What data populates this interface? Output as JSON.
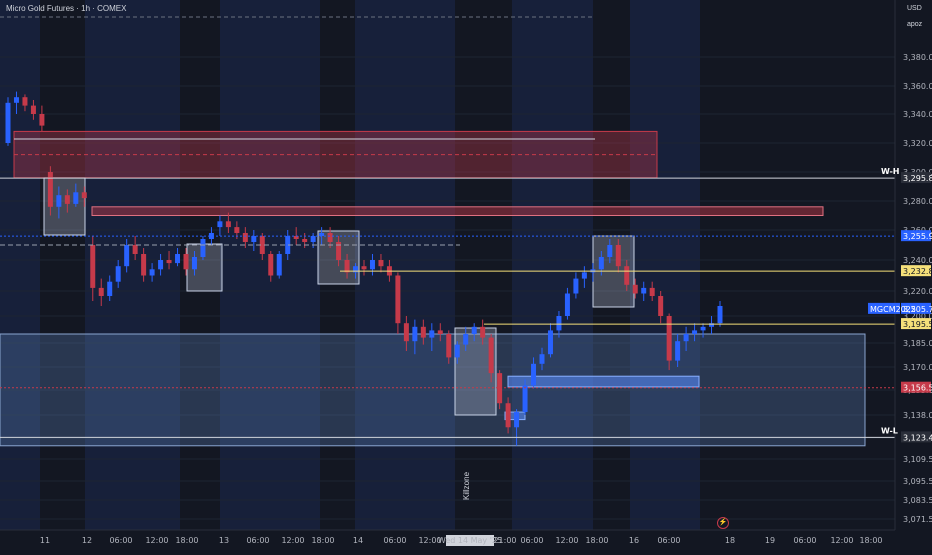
{
  "header": {
    "title": "Micro Gold Futures · 1h · COMEX"
  },
  "axis": {
    "currency": "USD",
    "user": "apoz"
  },
  "colors": {
    "bull": "#2962ff",
    "bear": "#c63a4a",
    "bg": "#131722",
    "session_bg": "#17203a"
  },
  "chart_data": {
    "type": "candlestick",
    "timeframe": "1h",
    "ylim": [
      3063,
      3400
    ],
    "x_ticks": [
      "11",
      "12",
      "06:00",
      "12:00",
      "18:00",
      "13",
      "06:00",
      "12:00",
      "18:00",
      "14",
      "06:00",
      "12:00",
      "Wed 14 May '25",
      "21:00",
      "06:00",
      "12:00",
      "18:00",
      "16",
      "06:00",
      "18",
      "19",
      "06:00",
      "12:00",
      "18:00"
    ],
    "y_ticks": [
      "3,380.0",
      "3,360.0",
      "3,340.0",
      "3,320.0",
      "3,300.0",
      "3,280.0",
      "3,260.0",
      "3,240.0",
      "3,220.0",
      "3,200.0",
      "3,185.0",
      "3,170.0",
      "3,155.0",
      "3,138.0",
      "3,123.0",
      "3,109.5",
      "3,095.5",
      "3,083.5",
      "3,071.5"
    ],
    "price_tags": [
      {
        "label": "W-H",
        "value": "3,295.8",
        "price": 3295.8,
        "color": "#ffffff"
      },
      {
        "label": "",
        "value": "3,255.9",
        "price": 3255.9,
        "color": "#2962ff"
      },
      {
        "label": "",
        "value": "3,232.8",
        "price": 3232.8,
        "color": "#f5e07a"
      },
      {
        "label": "MGCM2025",
        "value": "3,205.7",
        "price": 3205.7,
        "color": "#2962ff"
      },
      {
        "label": "",
        "value": "3,195.5",
        "price": 3195.5,
        "color": "#f5e07a"
      },
      {
        "label": "",
        "value": "3,156.5",
        "price": 3156.5,
        "color": "#c63a4a"
      },
      {
        "label": "W-L",
        "value": "3,123.4",
        "price": 3123.4,
        "color": "#ffffff"
      }
    ],
    "annotations": [
      {
        "text": "Killzone"
      }
    ],
    "candles": [
      [
        3320,
        3352,
        3318,
        3348
      ],
      [
        3348,
        3356,
        3340,
        3352
      ],
      [
        3352,
        3354,
        3342,
        3346
      ],
      [
        3346,
        3350,
        3336,
        3340
      ],
      [
        3340,
        3346,
        3328,
        3332
      ],
      [
        3300,
        3304,
        3270,
        3276
      ],
      [
        3276,
        3290,
        3268,
        3284
      ],
      [
        3284,
        3288,
        3272,
        3278
      ],
      [
        3278,
        3292,
        3276,
        3286
      ],
      [
        3286,
        3290,
        3276,
        3282
      ],
      [
        3250,
        3256,
        3212,
        3222
      ],
      [
        3222,
        3228,
        3208,
        3216
      ],
      [
        3216,
        3230,
        3212,
        3226
      ],
      [
        3226,
        3240,
        3222,
        3236
      ],
      [
        3236,
        3254,
        3232,
        3250
      ],
      [
        3250,
        3256,
        3240,
        3244
      ],
      [
        3244,
        3248,
        3226,
        3230
      ],
      [
        3230,
        3238,
        3226,
        3234
      ],
      [
        3234,
        3244,
        3230,
        3240
      ],
      [
        3240,
        3246,
        3234,
        3238
      ],
      [
        3238,
        3248,
        3236,
        3244
      ],
      [
        3244,
        3248,
        3230,
        3234
      ],
      [
        3234,
        3246,
        3230,
        3242
      ],
      [
        3242,
        3256,
        3240,
        3254
      ],
      [
        3254,
        3262,
        3250,
        3258
      ],
      [
        3262,
        3270,
        3256,
        3266
      ],
      [
        3266,
        3272,
        3258,
        3262
      ],
      [
        3262,
        3266,
        3254,
        3258
      ],
      [
        3258,
        3262,
        3248,
        3252
      ],
      [
        3252,
        3260,
        3246,
        3256
      ],
      [
        3256,
        3258,
        3240,
        3244
      ],
      [
        3244,
        3246,
        3226,
        3230
      ],
      [
        3230,
        3246,
        3228,
        3244
      ],
      [
        3244,
        3260,
        3240,
        3256
      ],
      [
        3256,
        3262,
        3250,
        3254
      ],
      [
        3254,
        3258,
        3248,
        3252
      ],
      [
        3252,
        3258,
        3248,
        3256
      ],
      [
        3256,
        3262,
        3250,
        3258
      ],
      [
        3258,
        3262,
        3248,
        3252
      ],
      [
        3252,
        3256,
        3236,
        3240
      ],
      [
        3240,
        3244,
        3228,
        3232
      ],
      [
        3232,
        3238,
        3228,
        3236
      ],
      [
        3236,
        3240,
        3230,
        3234
      ],
      [
        3234,
        3244,
        3230,
        3240
      ],
      [
        3240,
        3244,
        3232,
        3236
      ],
      [
        3236,
        3240,
        3226,
        3230
      ],
      [
        3230,
        3232,
        3190,
        3196
      ],
      [
        3196,
        3200,
        3180,
        3186
      ],
      [
        3186,
        3198,
        3178,
        3194
      ],
      [
        3194,
        3198,
        3184,
        3188
      ],
      [
        3188,
        3196,
        3180,
        3192
      ],
      [
        3192,
        3196,
        3186,
        3190
      ],
      [
        3190,
        3192,
        3172,
        3176
      ],
      [
        3176,
        3186,
        3172,
        3184
      ],
      [
        3184,
        3194,
        3180,
        3190
      ],
      [
        3190,
        3196,
        3186,
        3194
      ],
      [
        3194,
        3198,
        3184,
        3188
      ],
      [
        3188,
        3190,
        3160,
        3166
      ],
      [
        3166,
        3168,
        3142,
        3146
      ],
      [
        3146,
        3150,
        3126,
        3130
      ],
      [
        3130,
        3142,
        3118,
        3140
      ],
      [
        3140,
        3162,
        3138,
        3158
      ],
      [
        3158,
        3176,
        3156,
        3172
      ],
      [
        3172,
        3182,
        3168,
        3178
      ],
      [
        3178,
        3196,
        3176,
        3192
      ],
      [
        3192,
        3204,
        3188,
        3200
      ],
      [
        3200,
        3222,
        3198,
        3218
      ],
      [
        3218,
        3232,
        3214,
        3228
      ],
      [
        3228,
        3236,
        3222,
        3232
      ],
      [
        3232,
        3238,
        3226,
        3234
      ],
      [
        3234,
        3246,
        3230,
        3242
      ],
      [
        3242,
        3254,
        3238,
        3250
      ],
      [
        3250,
        3254,
        3232,
        3236
      ],
      [
        3236,
        3240,
        3220,
        3224
      ],
      [
        3224,
        3228,
        3214,
        3218
      ],
      [
        3218,
        3226,
        3212,
        3222
      ],
      [
        3222,
        3226,
        3212,
        3216
      ],
      [
        3216,
        3220,
        3196,
        3200
      ],
      [
        3200,
        3202,
        3168,
        3174
      ],
      [
        3174,
        3190,
        3170,
        3186
      ],
      [
        3186,
        3194,
        3180,
        3190
      ],
      [
        3190,
        3196,
        3186,
        3192
      ],
      [
        3192,
        3196,
        3188,
        3194
      ],
      [
        3194,
        3200,
        3190,
        3196
      ],
      [
        3196,
        3212,
        3194,
        3208
      ]
    ]
  }
}
